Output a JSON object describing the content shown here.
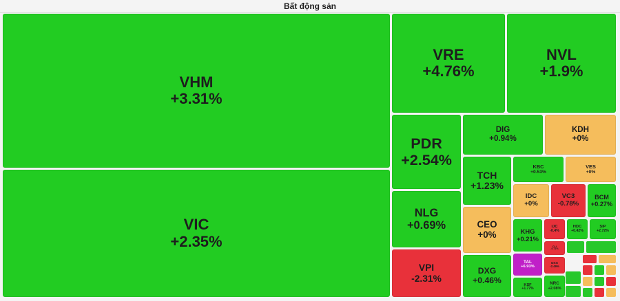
{
  "chart_data": {
    "type": "treemap",
    "title": "Bất động sản",
    "categories": [
      "VHM",
      "VIC",
      "VRE",
      "NVL",
      "PDR",
      "NLG",
      "VPI",
      "DIG",
      "KDH",
      "TCH",
      "KBC",
      "VES",
      "CEO",
      "DXG",
      "IDC",
      "VC3",
      "BCM",
      "KHG",
      "IJC",
      "HDC",
      "SIP",
      "CLI",
      "TAL",
      "DXS",
      "KSF",
      "NRC"
    ],
    "values": [
      3.31,
      2.35,
      4.76,
      1.9,
      2.54,
      0.69,
      -2.31,
      0.94,
      0,
      1.23,
      0.53,
      0,
      0,
      0.46,
      0,
      -0.78,
      0.27,
      0.21,
      -0.4,
      0.42,
      2.72,
      -0.71,
      6.93,
      -2.49,
      1.77,
      2.08
    ],
    "value_labels": [
      "+3.31%",
      "+2.35%",
      "+4.76%",
      "+1.9%",
      "+2.54%",
      "+0.69%",
      "-2.31%",
      "+0.94%",
      "+0%",
      "+1.23%",
      "+0.53%",
      "+0%",
      "+0%",
      "+0.46%",
      "+0%",
      "-0.78%",
      "+0.27%",
      "+0.21%",
      "-0.4%",
      "+0.42%",
      "+2.72%",
      "-0.71%",
      "+6.93%",
      "-2.49%",
      "+1.77%",
      "+2.08%"
    ],
    "colors": [
      "#22cc22",
      "#22cc22",
      "#22cc22",
      "#22cc22",
      "#22cc22",
      "#22cc22",
      "#e8313a",
      "#22cc22",
      "#f5bd5c",
      "#22cc22",
      "#22cc22",
      "#f5bd5c",
      "#f5bd5c",
      "#22cc22",
      "#f5bd5c",
      "#e8313a",
      "#22cc22",
      "#22cc22",
      "#e8313a",
      "#22cc22",
      "#22cc22",
      "#e8313a",
      "#c020c8",
      "#e8313a",
      "#22cc22",
      "#22cc22"
    ]
  }
}
